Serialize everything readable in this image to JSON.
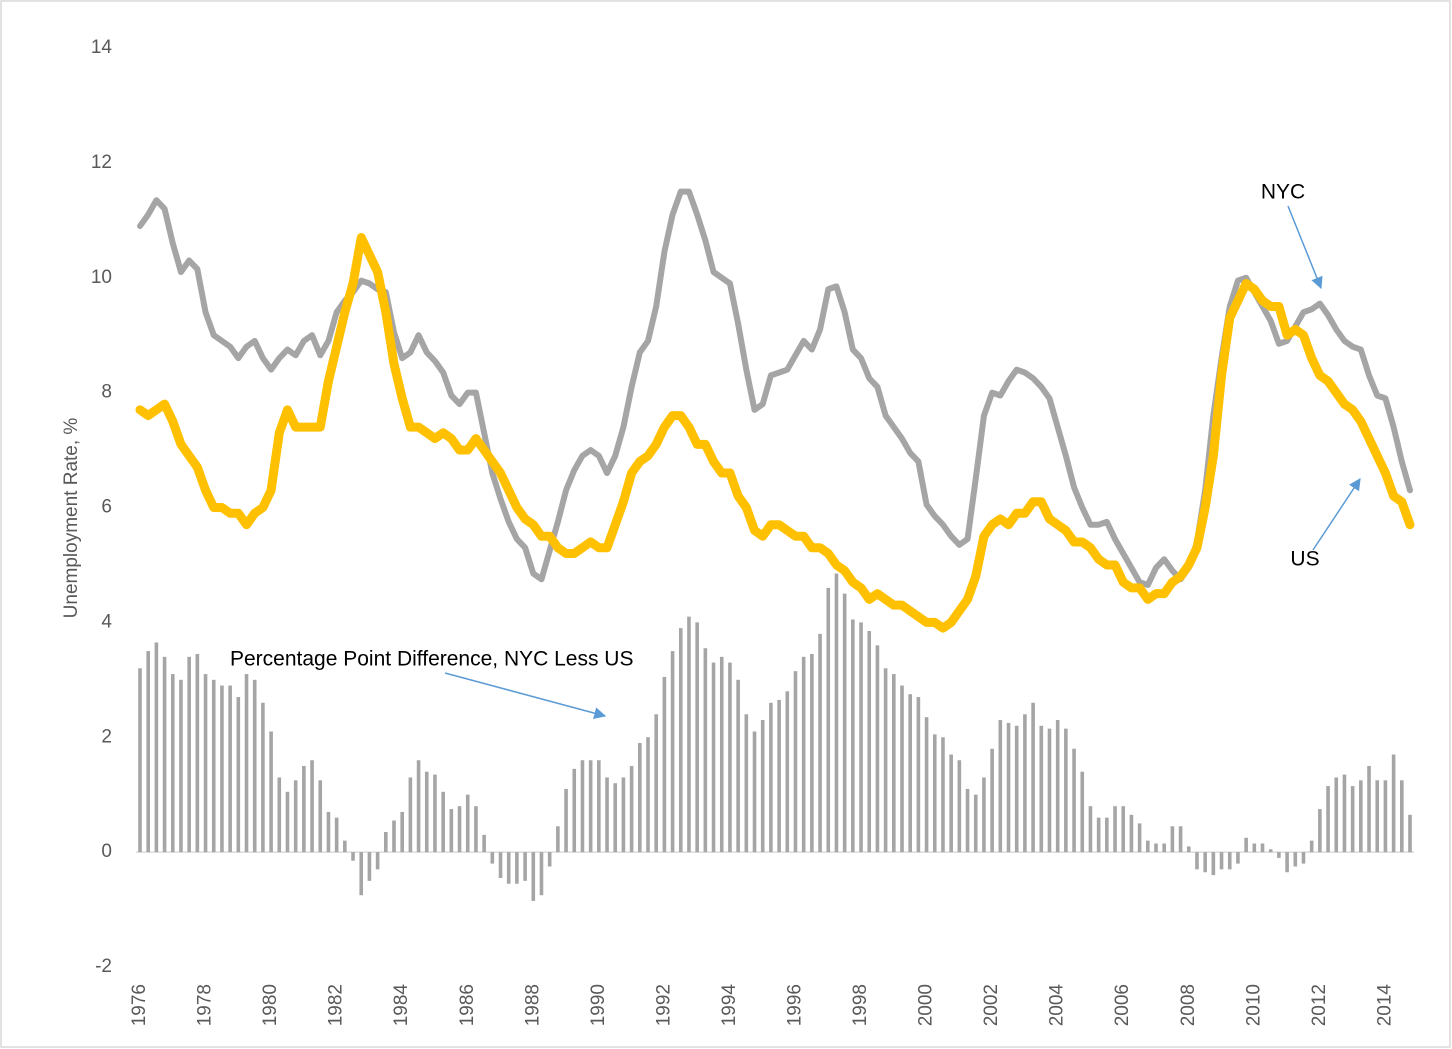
{
  "chart_data": {
    "type": "line",
    "y_label": "Unemployment Rate, %",
    "ylim": [
      -2,
      14
    ],
    "yticks": [
      -2,
      0,
      2,
      4,
      6,
      8,
      10,
      12,
      14
    ],
    "grid": false,
    "categories": [
      "1976",
      null,
      null,
      null,
      null,
      null,
      null,
      null,
      "1978",
      null,
      null,
      null,
      null,
      null,
      null,
      null,
      "1980",
      null,
      null,
      null,
      null,
      null,
      null,
      null,
      "1982",
      null,
      null,
      null,
      null,
      null,
      null,
      null,
      "1984",
      null,
      null,
      null,
      null,
      null,
      null,
      null,
      "1986",
      null,
      null,
      null,
      null,
      null,
      null,
      null,
      "1988",
      null,
      null,
      null,
      null,
      null,
      null,
      null,
      "1990",
      null,
      null,
      null,
      null,
      null,
      null,
      null,
      "1992",
      null,
      null,
      null,
      null,
      null,
      null,
      null,
      "1994",
      null,
      null,
      null,
      null,
      null,
      null,
      null,
      "1996",
      null,
      null,
      null,
      null,
      null,
      null,
      null,
      "1998",
      null,
      null,
      null,
      null,
      null,
      null,
      null,
      "2000",
      null,
      null,
      null,
      null,
      null,
      null,
      null,
      "2002",
      null,
      null,
      null,
      null,
      null,
      null,
      null,
      "2004",
      null,
      null,
      null,
      null,
      null,
      null,
      null,
      "2006",
      null,
      null,
      null,
      null,
      null,
      null,
      null,
      "2008",
      null,
      null,
      null,
      null,
      null,
      null,
      null,
      "2010",
      null,
      null,
      null,
      null,
      null,
      null,
      null,
      "2012",
      null,
      null,
      null,
      null,
      null,
      null,
      null,
      "2014",
      null,
      null,
      null
    ],
    "series": [
      {
        "name": "NYC",
        "type": "line",
        "color": "#a5a5a5",
        "values": [
          10.9,
          11.1,
          11.35,
          11.2,
          10.6,
          10.1,
          10.3,
          10.15,
          9.4,
          9.0,
          8.9,
          8.8,
          8.6,
          8.8,
          8.9,
          8.6,
          8.4,
          8.6,
          8.75,
          8.65,
          8.9,
          9.0,
          8.65,
          8.9,
          9.4,
          9.6,
          9.75,
          9.95,
          9.9,
          9.8,
          9.75,
          9.05,
          8.6,
          8.7,
          9.0,
          8.7,
          8.55,
          8.35,
          7.95,
          7.8,
          8.0,
          8.0,
          7.3,
          6.6,
          6.15,
          5.75,
          5.45,
          5.3,
          4.85,
          4.75,
          5.25,
          5.75,
          6.3,
          6.65,
          6.9,
          7.0,
          6.9,
          6.6,
          6.9,
          7.4,
          8.1,
          8.7,
          8.9,
          9.5,
          10.45,
          11.1,
          11.5,
          11.5,
          11.1,
          10.65,
          10.1,
          10.0,
          9.9,
          9.2,
          8.4,
          7.7,
          7.8,
          8.3,
          8.35,
          8.4,
          8.65,
          8.9,
          8.75,
          9.1,
          9.8,
          9.85,
          9.4,
          8.75,
          8.6,
          8.25,
          8.1,
          7.6,
          7.4,
          7.2,
          6.95,
          6.8,
          6.05,
          5.85,
          5.7,
          5.5,
          5.35,
          5.45,
          6.5,
          7.6,
          8.0,
          7.95,
          8.2,
          8.4,
          8.35,
          8.25,
          8.1,
          7.9,
          7.4,
          6.9,
          6.35,
          6.0,
          5.7,
          5.7,
          5.75,
          5.45,
          5.2,
          4.95,
          4.7,
          4.65,
          4.95,
          5.1,
          4.9,
          4.75,
          4.95,
          5.4,
          6.3,
          7.6,
          8.6,
          9.5,
          9.95,
          10.0,
          9.75,
          9.5,
          9.25,
          8.85,
          8.9,
          9.15,
          9.4,
          9.45,
          9.55,
          9.35,
          9.1,
          8.9,
          8.8,
          8.75,
          8.3,
          7.95,
          7.9,
          7.4,
          6.8,
          6.3
        ]
      },
      {
        "name": "US",
        "type": "line",
        "color": "#ffc000",
        "values": [
          7.7,
          7.6,
          7.7,
          7.8,
          7.5,
          7.1,
          6.9,
          6.7,
          6.3,
          6.0,
          6.0,
          5.9,
          5.9,
          5.7,
          5.9,
          6.0,
          6.3,
          7.3,
          7.7,
          7.4,
          7.4,
          7.4,
          7.4,
          8.2,
          8.8,
          9.4,
          9.9,
          10.7,
          10.4,
          10.1,
          9.4,
          8.5,
          7.9,
          7.4,
          7.4,
          7.3,
          7.2,
          7.3,
          7.2,
          7.0,
          7.0,
          7.2,
          7.0,
          6.8,
          6.6,
          6.3,
          6.0,
          5.8,
          5.7,
          5.5,
          5.5,
          5.3,
          5.2,
          5.2,
          5.3,
          5.4,
          5.3,
          5.3,
          5.7,
          6.1,
          6.6,
          6.8,
          6.9,
          7.1,
          7.4,
          7.6,
          7.6,
          7.4,
          7.1,
          7.1,
          6.8,
          6.6,
          6.6,
          6.2,
          6.0,
          5.6,
          5.5,
          5.7,
          5.7,
          5.6,
          5.5,
          5.5,
          5.3,
          5.3,
          5.2,
          5.0,
          4.9,
          4.7,
          4.6,
          4.4,
          4.5,
          4.4,
          4.3,
          4.3,
          4.2,
          4.1,
          4.0,
          4.0,
          3.9,
          4.0,
          4.2,
          4.4,
          4.8,
          5.5,
          5.7,
          5.8,
          5.7,
          5.9,
          5.9,
          6.1,
          6.1,
          5.8,
          5.7,
          5.6,
          5.4,
          5.4,
          5.3,
          5.1,
          5.0,
          5.0,
          4.7,
          4.6,
          4.6,
          4.4,
          4.5,
          4.5,
          4.7,
          4.8,
          5.0,
          5.3,
          6.0,
          6.9,
          8.3,
          9.3,
          9.6,
          9.9,
          9.8,
          9.6,
          9.5,
          9.5,
          9.0,
          9.1,
          9.0,
          8.6,
          8.3,
          8.2,
          8.0,
          7.8,
          7.7,
          7.5,
          7.2,
          6.9,
          6.6,
          6.2,
          6.1,
          5.7
        ]
      },
      {
        "name": "Percentage Point Difference, NYC Less US",
        "type": "bar",
        "color": "#a5a5a5",
        "values": [
          3.2,
          3.5,
          3.65,
          3.4,
          3.1,
          3.0,
          3.4,
          3.45,
          3.1,
          3.0,
          2.9,
          2.9,
          2.7,
          3.1,
          3.0,
          2.6,
          2.1,
          1.3,
          1.05,
          1.25,
          1.5,
          1.6,
          1.25,
          0.7,
          0.6,
          0.2,
          -0.15,
          -0.75,
          -0.5,
          -0.3,
          0.35,
          0.55,
          0.7,
          1.3,
          1.6,
          1.4,
          1.35,
          1.05,
          0.75,
          0.8,
          1.0,
          0.8,
          0.3,
          -0.2,
          -0.45,
          -0.55,
          -0.55,
          -0.5,
          -0.85,
          -0.75,
          -0.25,
          0.45,
          1.1,
          1.45,
          1.6,
          1.6,
          1.6,
          1.3,
          1.2,
          1.3,
          1.5,
          1.9,
          2.0,
          2.4,
          3.05,
          3.5,
          3.9,
          4.1,
          4.0,
          3.55,
          3.3,
          3.4,
          3.3,
          3.0,
          2.4,
          2.1,
          2.3,
          2.6,
          2.65,
          2.8,
          3.15,
          3.4,
          3.45,
          3.8,
          4.6,
          4.85,
          4.5,
          4.05,
          4.0,
          3.85,
          3.6,
          3.2,
          3.1,
          2.9,
          2.75,
          2.7,
          2.35,
          2.05,
          2.0,
          1.7,
          1.6,
          1.1,
          1.0,
          1.3,
          1.8,
          2.3,
          2.25,
          2.2,
          2.4,
          2.6,
          2.2,
          2.15,
          2.3,
          2.15,
          1.8,
          1.4,
          0.8,
          0.6,
          0.6,
          0.8,
          0.8,
          0.65,
          0.5,
          0.2,
          0.15,
          0.15,
          0.45,
          0.45,
          0.1,
          -0.3,
          -0.35,
          -0.4,
          -0.3,
          -0.3,
          -0.2,
          0.25,
          0.15,
          0.15,
          0.05,
          -0.1,
          -0.35,
          -0.25,
          -0.2,
          0.2,
          0.75,
          1.15,
          1.3,
          1.35,
          1.15,
          1.25,
          1.5,
          1.25,
          1.25,
          1.7,
          1.25,
          0.65
        ]
      }
    ]
  }
}
